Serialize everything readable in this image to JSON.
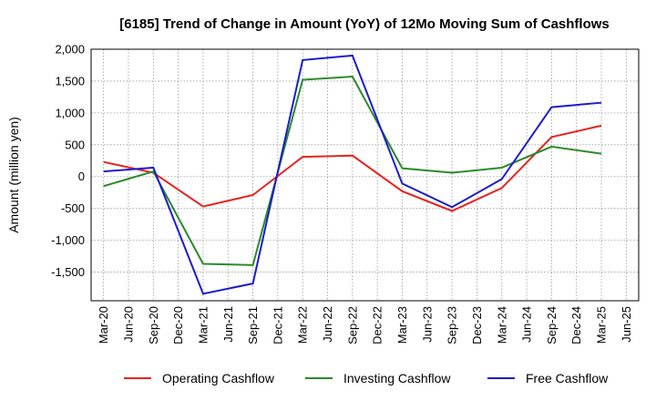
{
  "chart_data": {
    "type": "line",
    "title": "[6185]  Trend of Change in Amount (YoY) of 12Mo Moving Sum of Cashflows",
    "ylabel": "Amount (million yen)",
    "xlabel": "",
    "ylim": [
      -1950,
      2000
    ],
    "yticks": [
      2000,
      1500,
      1000,
      500,
      0,
      -500,
      -1000,
      -1500
    ],
    "ytick_labels": [
      "2,000",
      "1,500",
      "1,000",
      "500",
      "0",
      "-500",
      "-1,000",
      "-1,500"
    ],
    "categories": [
      "Mar-20",
      "Jun-20",
      "Sep-20",
      "Dec-20",
      "Mar-21",
      "Jun-21",
      "Sep-21",
      "Dec-21",
      "Mar-22",
      "Jun-22",
      "Sep-22",
      "Dec-22",
      "Mar-23",
      "Jun-23",
      "Sep-23",
      "Dec-23",
      "Mar-24",
      "Jun-24",
      "Sep-24",
      "Dec-24",
      "Mar-25",
      "Jun-25"
    ],
    "grid": true,
    "legend_position": "bottom",
    "series": [
      {
        "name": "Operating Cashflow",
        "color": "#e8231f",
        "points": [
          [
            "Mar-20",
            230
          ],
          [
            "Sep-20",
            60
          ],
          [
            "Mar-21",
            -470
          ],
          [
            "Sep-21",
            -290
          ],
          [
            "Mar-22",
            310
          ],
          [
            "Sep-22",
            330
          ],
          [
            "Mar-23",
            -230
          ],
          [
            "Sep-23",
            -540
          ],
          [
            "Mar-24",
            -180
          ],
          [
            "Sep-24",
            620
          ],
          [
            "Mar-25",
            800
          ]
        ]
      },
      {
        "name": "Investing Cashflow",
        "color": "#2a8a2a",
        "points": [
          [
            "Mar-20",
            -150
          ],
          [
            "Sep-20",
            80
          ],
          [
            "Mar-21",
            -1370
          ],
          [
            "Sep-21",
            -1390
          ],
          [
            "Mar-22",
            1520
          ],
          [
            "Sep-22",
            1570
          ],
          [
            "Mar-23",
            130
          ],
          [
            "Sep-23",
            60
          ],
          [
            "Mar-24",
            140
          ],
          [
            "Sep-24",
            470
          ],
          [
            "Mar-25",
            360
          ]
        ]
      },
      {
        "name": "Free Cashflow",
        "color": "#1c1ccc",
        "points": [
          [
            "Mar-20",
            80
          ],
          [
            "Sep-20",
            140
          ],
          [
            "Mar-21",
            -1840
          ],
          [
            "Sep-21",
            -1680
          ],
          [
            "Mar-22",
            1830
          ],
          [
            "Sep-22",
            1900
          ],
          [
            "Mar-23",
            -110
          ],
          [
            "Sep-23",
            -480
          ],
          [
            "Mar-24",
            -40
          ],
          [
            "Sep-24",
            1090
          ],
          [
            "Mar-25",
            1160
          ]
        ]
      }
    ]
  }
}
